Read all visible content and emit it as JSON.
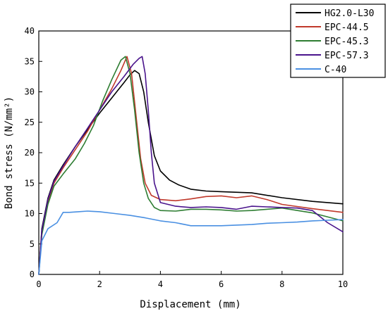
{
  "chart_data": {
    "type": "line",
    "xlabel": "Displacement (mm)",
    "ylabel": "Bond stress (N/mm²)",
    "xlim": [
      0,
      10
    ],
    "ylim": [
      0,
      40
    ],
    "xticks": [
      "0",
      "2",
      "4",
      "6",
      "8",
      "10"
    ],
    "yticks": [
      "0",
      "5",
      "10",
      "15",
      "20",
      "25",
      "30",
      "35",
      "40"
    ],
    "grid": false,
    "legend_position": "top-right",
    "series": [
      {
        "name": "HG2.0-L30",
        "color": "#000000",
        "x": [
          0,
          0.1,
          0.3,
          0.5,
          0.8,
          1.2,
          1.6,
          2.0,
          2.4,
          2.8,
          3.0,
          3.15,
          3.3,
          3.45,
          3.6,
          3.8,
          4.0,
          4.3,
          4.6,
          5.0,
          5.5,
          6.0,
          7.0,
          8.0,
          9.0,
          10.0
        ],
        "values": [
          0,
          7.5,
          12.5,
          15.5,
          18.0,
          21.0,
          23.8,
          26.5,
          29.0,
          31.5,
          32.8,
          33.5,
          33.0,
          30.0,
          25.0,
          19.5,
          17.0,
          15.5,
          14.7,
          14.0,
          13.7,
          13.6,
          13.4,
          12.6,
          12.0,
          11.6
        ]
      },
      {
        "name": "EPC-44.5",
        "color": "#c0392b",
        "x": [
          0,
          0.1,
          0.3,
          0.5,
          0.8,
          1.2,
          1.6,
          2.0,
          2.4,
          2.7,
          2.9,
          3.05,
          3.2,
          3.35,
          3.5,
          3.7,
          4.0,
          4.5,
          5.0,
          5.5,
          6.0,
          6.5,
          7.0,
          7.5,
          8.0,
          9.0,
          10.0
        ],
        "values": [
          0,
          7.0,
          12.0,
          15.0,
          17.5,
          20.5,
          23.5,
          27.0,
          30.5,
          33.5,
          35.8,
          33.0,
          26.0,
          19.0,
          15.0,
          13.0,
          12.3,
          12.1,
          12.4,
          12.8,
          12.9,
          12.6,
          12.9,
          12.3,
          11.5,
          10.8,
          10.2
        ]
      },
      {
        "name": "EPC-45.3",
        "color": "#2e7d32",
        "x": [
          0,
          0.1,
          0.3,
          0.5,
          0.8,
          1.2,
          1.5,
          1.8,
          2.1,
          2.4,
          2.7,
          2.85,
          3.0,
          3.15,
          3.3,
          3.45,
          3.6,
          3.8,
          4.0,
          4.5,
          5.0,
          5.5,
          6.0,
          6.5,
          7.0,
          7.5,
          8.0,
          9.0,
          10.0
        ],
        "values": [
          0,
          6.5,
          11.5,
          14.5,
          16.5,
          19.0,
          21.5,
          24.5,
          28.5,
          32.0,
          35.2,
          35.8,
          33.0,
          27.0,
          20.0,
          15.0,
          12.5,
          11.0,
          10.5,
          10.4,
          10.7,
          10.7,
          10.6,
          10.4,
          10.5,
          10.7,
          10.9,
          10.1,
          8.8
        ]
      },
      {
        "name": "EPC-57.3",
        "color": "#4a148c",
        "x": [
          0,
          0.1,
          0.3,
          0.5,
          0.8,
          1.2,
          1.6,
          2.0,
          2.4,
          2.8,
          3.1,
          3.3,
          3.4,
          3.5,
          3.6,
          3.7,
          3.8,
          4.0,
          4.5,
          5.0,
          5.5,
          6.0,
          6.5,
          7.0,
          7.5,
          8.0,
          8.5,
          9.0,
          9.5,
          10.0
        ],
        "values": [
          0,
          7.2,
          12.3,
          15.3,
          17.8,
          21.0,
          24.0,
          27.0,
          30.0,
          32.5,
          34.5,
          35.5,
          35.8,
          33.0,
          27.0,
          20.0,
          15.0,
          11.8,
          11.2,
          11.0,
          11.1,
          11.0,
          10.7,
          11.2,
          11.1,
          11.0,
          10.9,
          10.5,
          8.5,
          7.0
        ]
      },
      {
        "name": "C-40",
        "color": "#4a90e2",
        "x": [
          0,
          0.1,
          0.3,
          0.6,
          0.8,
          1.0,
          1.3,
          1.6,
          2.0,
          2.5,
          3.0,
          3.5,
          4.0,
          4.5,
          5.0,
          5.5,
          6.0,
          6.5,
          7.0,
          7.5,
          8.0,
          8.5,
          9.0,
          9.5,
          10.0
        ],
        "values": [
          0,
          5.5,
          7.5,
          8.5,
          10.2,
          10.2,
          10.3,
          10.4,
          10.3,
          10.0,
          9.7,
          9.3,
          8.8,
          8.5,
          8.0,
          8.0,
          8.0,
          8.1,
          8.2,
          8.4,
          8.5,
          8.6,
          8.8,
          8.9,
          9.0
        ]
      }
    ]
  }
}
